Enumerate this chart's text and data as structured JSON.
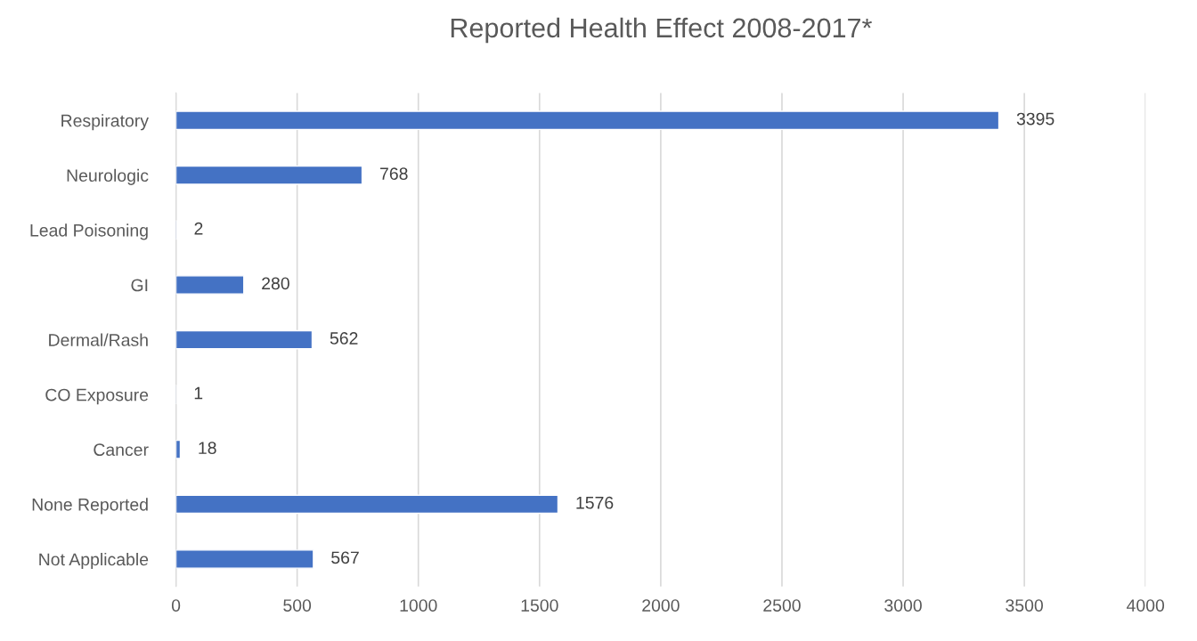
{
  "chart_data": {
    "type": "bar",
    "orientation": "horizontal",
    "title": "Reported Health Effect 2008-2017*",
    "categories": [
      "Respiratory",
      "Neurologic",
      "Lead Poisoning",
      "GI",
      "Dermal/Rash",
      "CO Exposure",
      "Cancer",
      "None Reported",
      "Not Applicable"
    ],
    "values": [
      3395,
      768,
      2,
      280,
      562,
      1,
      18,
      1576,
      567
    ],
    "color": "#4472c4",
    "xlim": [
      0,
      4000
    ],
    "xticks": [
      0,
      500,
      1000,
      1500,
      2000,
      2500,
      3000,
      3500,
      4000
    ],
    "grid": "x",
    "data_labels": true,
    "legend": false
  }
}
